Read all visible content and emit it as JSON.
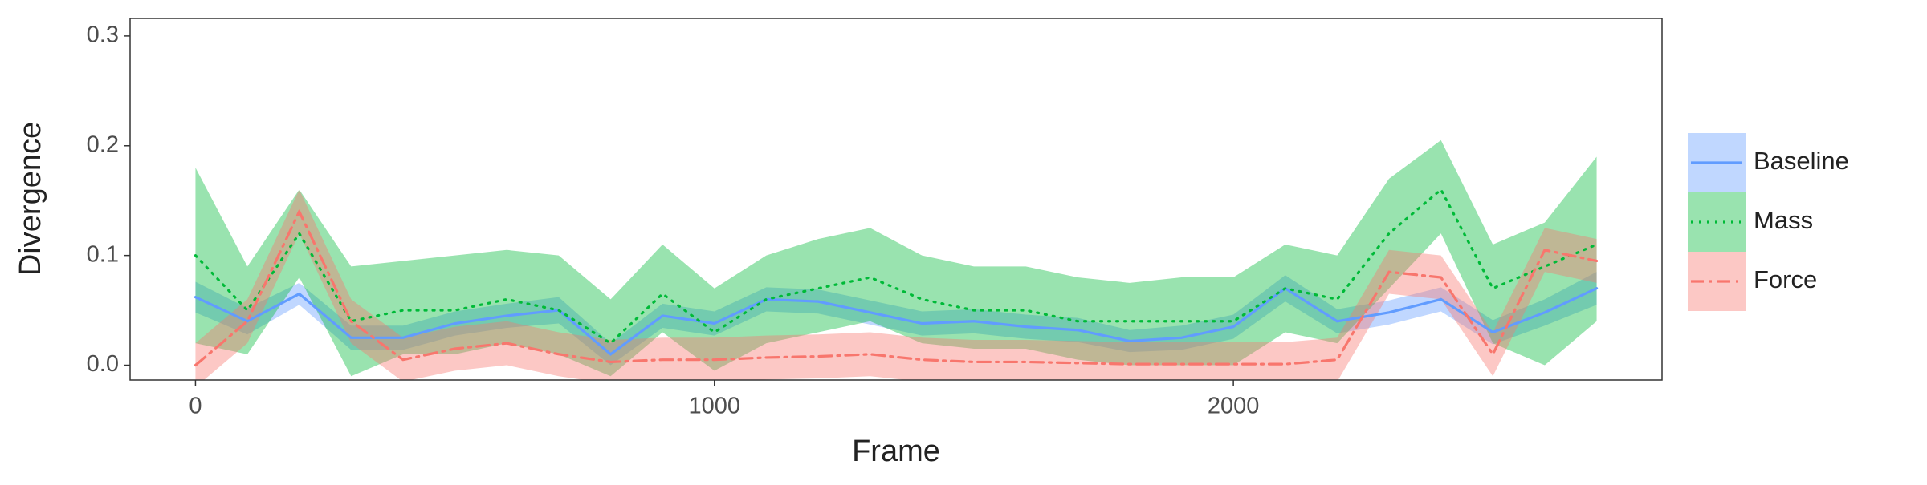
{
  "chart_data": {
    "type": "line",
    "xlabel": "Frame",
    "ylabel": "Divergence",
    "x": [
      0,
      100,
      200,
      300,
      400,
      500,
      600,
      700,
      800,
      900,
      1000,
      1100,
      1200,
      1300,
      1400,
      1500,
      1600,
      1700,
      1800,
      1900,
      2000,
      2100,
      2200,
      2300,
      2400,
      2500,
      2600,
      2700
    ],
    "xlim": [
      -126,
      2826
    ],
    "xticks": [
      0,
      1000,
      2000
    ],
    "ylim": [
      -0.0135,
      0.316
    ],
    "yticks": [
      {
        "value": 0,
        "label": "0.0"
      },
      0.1,
      0.2,
      0.3
    ],
    "grid": false,
    "legend": "right",
    "series": [
      {
        "name": "Baseline",
        "color": "#619CFF",
        "dash": "solid",
        "values": [
          0.062,
          0.04,
          0.065,
          0.025,
          0.025,
          0.038,
          0.045,
          0.05,
          0.01,
          0.045,
          0.038,
          0.06,
          0.058,
          0.048,
          0.038,
          0.04,
          0.035,
          0.032,
          0.022,
          0.025,
          0.035,
          0.07,
          0.04,
          0.048,
          0.06,
          0.03,
          0.048,
          0.07
        ],
        "lower": [
          0.048,
          0.028,
          0.055,
          0.014,
          0.014,
          0.027,
          0.034,
          0.038,
          0.0,
          0.034,
          0.027,
          0.049,
          0.047,
          0.037,
          0.027,
          0.029,
          0.024,
          0.021,
          0.012,
          0.014,
          0.024,
          0.058,
          0.029,
          0.037,
          0.049,
          0.019,
          0.036,
          0.055
        ],
        "upper": [
          0.076,
          0.052,
          0.075,
          0.036,
          0.036,
          0.049,
          0.056,
          0.062,
          0.02,
          0.056,
          0.049,
          0.071,
          0.069,
          0.059,
          0.049,
          0.051,
          0.046,
          0.043,
          0.032,
          0.036,
          0.046,
          0.082,
          0.051,
          0.059,
          0.071,
          0.041,
          0.06,
          0.085
        ]
      },
      {
        "name": "Mass",
        "color": "#00BA38",
        "dash": "dotted",
        "values": [
          0.1,
          0.05,
          0.12,
          0.04,
          0.05,
          0.05,
          0.06,
          0.05,
          0.02,
          0.065,
          0.03,
          0.06,
          0.07,
          0.08,
          0.06,
          0.05,
          0.05,
          0.04,
          0.04,
          0.04,
          0.04,
          0.07,
          0.06,
          0.12,
          0.16,
          0.07,
          0.09,
          0.11
        ],
        "lower": [
          0.02,
          0.01,
          0.08,
          -0.01,
          0.01,
          0.01,
          0.02,
          0.01,
          -0.01,
          0.03,
          -0.005,
          0.02,
          0.03,
          0.04,
          0.02,
          0.015,
          0.015,
          0.005,
          0.0,
          0.0,
          0.0,
          0.03,
          0.02,
          0.07,
          0.12,
          0.02,
          0.0,
          0.04
        ],
        "upper": [
          0.18,
          0.09,
          0.16,
          0.09,
          0.095,
          0.1,
          0.105,
          0.1,
          0.06,
          0.11,
          0.07,
          0.1,
          0.115,
          0.125,
          0.1,
          0.09,
          0.09,
          0.08,
          0.075,
          0.08,
          0.08,
          0.11,
          0.1,
          0.17,
          0.205,
          0.11,
          0.13,
          0.19
        ]
      },
      {
        "name": "Force",
        "color": "#F8766D",
        "dash": "dashdot",
        "values": [
          0.0,
          0.04,
          0.14,
          0.04,
          0.005,
          0.015,
          0.02,
          0.01,
          0.003,
          0.005,
          0.005,
          0.007,
          0.008,
          0.01,
          0.005,
          0.003,
          0.003,
          0.002,
          0.001,
          0.001,
          0.001,
          0.001,
          0.005,
          0.085,
          0.08,
          0.01,
          0.105,
          0.095
        ],
        "lower": [
          -0.02,
          0.02,
          0.12,
          0.02,
          -0.015,
          -0.005,
          0.0,
          -0.01,
          -0.017,
          -0.015,
          -0.015,
          -0.013,
          -0.012,
          -0.01,
          -0.015,
          -0.017,
          -0.017,
          -0.018,
          -0.019,
          -0.019,
          -0.019,
          -0.019,
          -0.015,
          0.065,
          0.06,
          -0.01,
          0.085,
          0.075
        ],
        "upper": [
          0.02,
          0.06,
          0.16,
          0.06,
          0.025,
          0.035,
          0.04,
          0.03,
          0.023,
          0.025,
          0.025,
          0.027,
          0.028,
          0.03,
          0.025,
          0.023,
          0.023,
          0.022,
          0.021,
          0.021,
          0.021,
          0.021,
          0.025,
          0.105,
          0.1,
          0.03,
          0.125,
          0.115
        ]
      }
    ]
  }
}
